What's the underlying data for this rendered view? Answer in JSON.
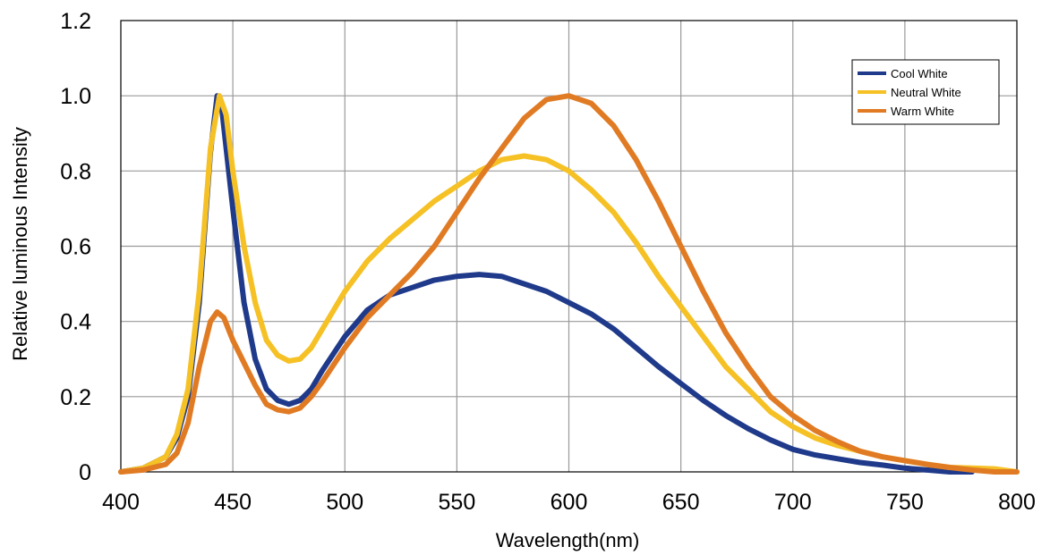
{
  "chart_data": {
    "type": "line",
    "title": "",
    "xlabel": "Wavelength(nm)",
    "ylabel": "Relative luminous Intensity",
    "xlim": [
      400,
      800
    ],
    "ylim": [
      0,
      1.2
    ],
    "x_ticks": [
      400,
      450,
      500,
      550,
      600,
      650,
      700,
      750,
      800
    ],
    "x_tick_labels": [
      "400",
      "450",
      "500",
      "550",
      "600",
      "650",
      "700",
      "750",
      "800"
    ],
    "y_ticks": [
      0,
      0.2,
      0.4,
      0.6,
      0.8,
      1.0,
      1.2
    ],
    "y_tick_labels": [
      "0",
      "0.2",
      "0.4",
      "0.6",
      "0.8",
      "1.0",
      "1.2"
    ],
    "grid": true,
    "legend_position": "top-right",
    "series": [
      {
        "name": "Cool White",
        "color": "#1f3a8a",
        "points": [
          [
            400,
            0.0
          ],
          [
            410,
            0.01
          ],
          [
            420,
            0.04
          ],
          [
            425,
            0.09
          ],
          [
            430,
            0.2
          ],
          [
            435,
            0.45
          ],
          [
            440,
            0.85
          ],
          [
            443,
            1.0
          ],
          [
            445,
            0.97
          ],
          [
            450,
            0.7
          ],
          [
            455,
            0.45
          ],
          [
            460,
            0.3
          ],
          [
            465,
            0.22
          ],
          [
            470,
            0.19
          ],
          [
            475,
            0.18
          ],
          [
            480,
            0.19
          ],
          [
            485,
            0.22
          ],
          [
            490,
            0.27
          ],
          [
            500,
            0.36
          ],
          [
            510,
            0.43
          ],
          [
            520,
            0.47
          ],
          [
            530,
            0.49
          ],
          [
            540,
            0.51
          ],
          [
            550,
            0.52
          ],
          [
            560,
            0.525
          ],
          [
            570,
            0.52
          ],
          [
            580,
            0.5
          ],
          [
            590,
            0.48
          ],
          [
            600,
            0.45
          ],
          [
            610,
            0.42
          ],
          [
            620,
            0.38
          ],
          [
            630,
            0.33
          ],
          [
            640,
            0.28
          ],
          [
            650,
            0.235
          ],
          [
            660,
            0.19
          ],
          [
            670,
            0.15
          ],
          [
            680,
            0.115
          ],
          [
            690,
            0.085
          ],
          [
            700,
            0.06
          ],
          [
            710,
            0.045
          ],
          [
            720,
            0.035
          ],
          [
            730,
            0.025
          ],
          [
            740,
            0.018
          ],
          [
            750,
            0.01
          ],
          [
            760,
            0.005
          ],
          [
            770,
            0.0
          ],
          [
            780,
            0.0
          ]
        ]
      },
      {
        "name": "Neutral White",
        "color": "#f5c125",
        "points": [
          [
            400,
            0.0
          ],
          [
            410,
            0.01
          ],
          [
            420,
            0.04
          ],
          [
            425,
            0.1
          ],
          [
            430,
            0.22
          ],
          [
            435,
            0.48
          ],
          [
            440,
            0.86
          ],
          [
            444,
            1.0
          ],
          [
            447,
            0.95
          ],
          [
            450,
            0.8
          ],
          [
            455,
            0.6
          ],
          [
            460,
            0.45
          ],
          [
            465,
            0.35
          ],
          [
            470,
            0.31
          ],
          [
            475,
            0.295
          ],
          [
            480,
            0.3
          ],
          [
            485,
            0.33
          ],
          [
            490,
            0.38
          ],
          [
            500,
            0.48
          ],
          [
            510,
            0.56
          ],
          [
            520,
            0.62
          ],
          [
            530,
            0.67
          ],
          [
            540,
            0.72
          ],
          [
            550,
            0.76
          ],
          [
            560,
            0.8
          ],
          [
            570,
            0.83
          ],
          [
            580,
            0.84
          ],
          [
            590,
            0.83
          ],
          [
            600,
            0.8
          ],
          [
            610,
            0.75
          ],
          [
            620,
            0.69
          ],
          [
            630,
            0.61
          ],
          [
            640,
            0.52
          ],
          [
            650,
            0.44
          ],
          [
            660,
            0.36
          ],
          [
            670,
            0.28
          ],
          [
            680,
            0.22
          ],
          [
            690,
            0.16
          ],
          [
            700,
            0.12
          ],
          [
            710,
            0.09
          ],
          [
            720,
            0.07
          ],
          [
            730,
            0.055
          ],
          [
            740,
            0.04
          ],
          [
            750,
            0.03
          ],
          [
            760,
            0.02
          ],
          [
            770,
            0.012
          ],
          [
            780,
            0.01
          ],
          [
            790,
            0.008
          ],
          [
            800,
            0.0
          ]
        ]
      },
      {
        "name": "Warm White",
        "color": "#e07b24",
        "points": [
          [
            400,
            0.0
          ],
          [
            410,
            0.005
          ],
          [
            420,
            0.02
          ],
          [
            425,
            0.05
          ],
          [
            430,
            0.13
          ],
          [
            435,
            0.28
          ],
          [
            440,
            0.4
          ],
          [
            443,
            0.425
          ],
          [
            446,
            0.41
          ],
          [
            450,
            0.35
          ],
          [
            455,
            0.29
          ],
          [
            460,
            0.23
          ],
          [
            465,
            0.18
          ],
          [
            470,
            0.165
          ],
          [
            475,
            0.16
          ],
          [
            480,
            0.17
          ],
          [
            485,
            0.2
          ],
          [
            490,
            0.24
          ],
          [
            500,
            0.33
          ],
          [
            510,
            0.41
          ],
          [
            520,
            0.47
          ],
          [
            530,
            0.53
          ],
          [
            540,
            0.6
          ],
          [
            550,
            0.69
          ],
          [
            560,
            0.78
          ],
          [
            570,
            0.86
          ],
          [
            580,
            0.94
          ],
          [
            590,
            0.99
          ],
          [
            600,
            1.0
          ],
          [
            610,
            0.98
          ],
          [
            620,
            0.92
          ],
          [
            630,
            0.83
          ],
          [
            640,
            0.72
          ],
          [
            650,
            0.6
          ],
          [
            660,
            0.48
          ],
          [
            670,
            0.37
          ],
          [
            680,
            0.28
          ],
          [
            690,
            0.2
          ],
          [
            700,
            0.15
          ],
          [
            710,
            0.11
          ],
          [
            720,
            0.08
          ],
          [
            730,
            0.055
          ],
          [
            740,
            0.04
          ],
          [
            750,
            0.03
          ],
          [
            760,
            0.02
          ],
          [
            770,
            0.012
          ],
          [
            780,
            0.005
          ],
          [
            790,
            0.0
          ],
          [
            800,
            0.0
          ]
        ]
      }
    ]
  }
}
